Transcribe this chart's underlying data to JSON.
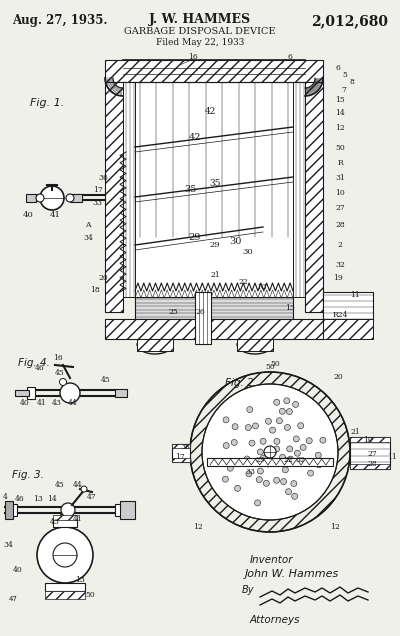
{
  "title_left": "Aug. 27, 1935.",
  "title_center": "J. W. HAMMES",
  "title_right": "2,012,680",
  "subtitle": "GARBAGE DISPOSAL DEVICE",
  "filed": "Filed May 22, 1933",
  "fig1_label": "Fig. 1.",
  "fig2_label": "Fig. 2.",
  "fig3_label": "Fig. 3.",
  "fig4_label": "Fig. 4.",
  "bg_color": "#f0f0eb",
  "line_color": "#1a1a1a",
  "figsize": [
    4.0,
    6.36
  ],
  "dpi": 100
}
